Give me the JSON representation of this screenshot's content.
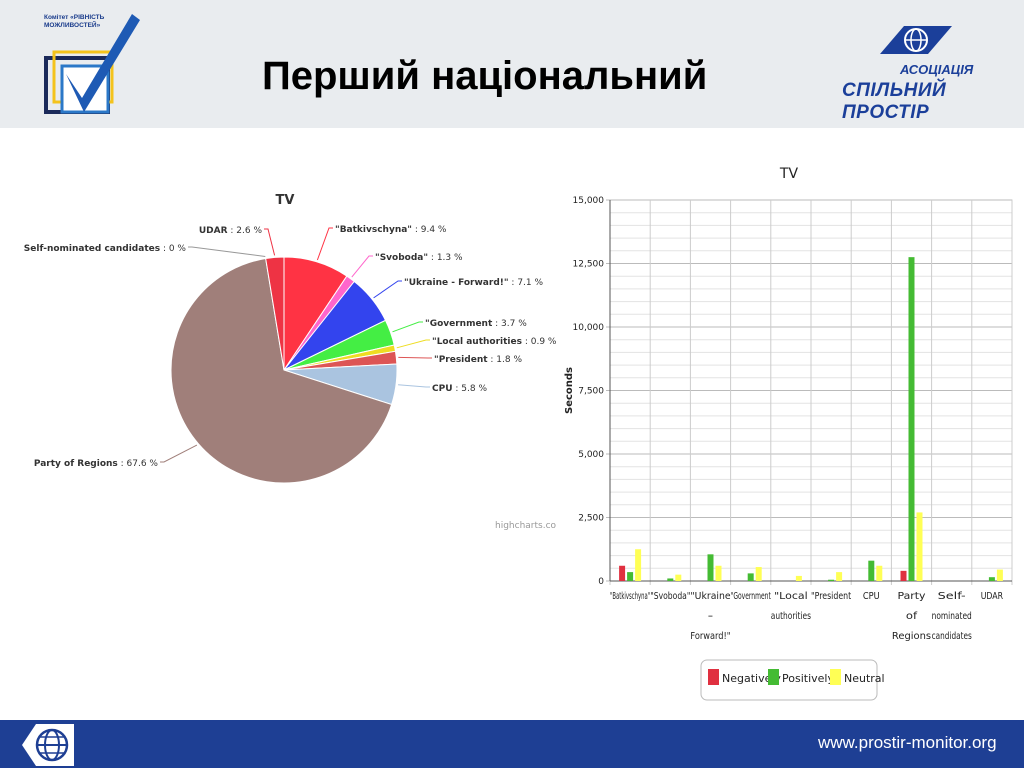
{
  "header": {
    "title": "Перший національний",
    "logo_left_text": "Комітет «РІВНІСТЬ МОЖЛИВОСТЕЙ»",
    "logo_right_line1": "АСОЦІАЦІЯ",
    "logo_right_line2": "СПІЛЬНИЙ ПРОСТІР"
  },
  "footer": {
    "url": "www.prostir-monitor.org"
  },
  "colors": {
    "header_bg": "#e9ecef",
    "footer_bg": "#1e3f94",
    "brand_blue": "#1b3f9a"
  },
  "chart_data": [
    {
      "type": "pie",
      "title": "TV",
      "credit": "highcharts.co",
      "slices": [
        {
          "label": "\"Batkivschyna\"",
          "value": 9.4,
          "color": "#ff3344"
        },
        {
          "label": "\"Svoboda\"",
          "value": 1.3,
          "color": "#ff66cc"
        },
        {
          "label": "\"Ukraine - Forward!\"",
          "value": 7.1,
          "color": "#3344ee"
        },
        {
          "label": "\"Government",
          "value": 3.7,
          "color": "#44ee44"
        },
        {
          "label": "\"Local authorities",
          "value": 0.9,
          "color": "#eedd22"
        },
        {
          "label": "\"President",
          "value": 1.8,
          "color": "#dd5555"
        },
        {
          "label": "CPU",
          "value": 5.8,
          "color": "#aac4e0"
        },
        {
          "label": "Party of Regions",
          "value": 67.6,
          "color": "#a07f7a"
        },
        {
          "label": "Self-nominated candidates",
          "value": 0,
          "color": "#888888"
        },
        {
          "label": "UDAR",
          "value": 2.6,
          "color": "#ee3344"
        }
      ]
    },
    {
      "type": "bar",
      "title": "TV",
      "ylabel": "Seconds",
      "ylim": [
        0,
        15000
      ],
      "yticks": [
        "0",
        "2,500",
        "5,000",
        "7,500",
        "10,000",
        "12,500",
        "15,000"
      ],
      "ytick_values": [
        0,
        2500,
        5000,
        7500,
        10000,
        12500,
        15000
      ],
      "categories": [
        [
          "\"Batkivschyna\""
        ],
        [
          "\"Svoboda\""
        ],
        [
          "\"Ukraine",
          "-",
          "Forward!\""
        ],
        [
          "\"Government"
        ],
        [
          "\"Local",
          "authorities"
        ],
        [
          "\"President"
        ],
        [
          "CPU"
        ],
        [
          "Party",
          "of",
          "Regions"
        ],
        [
          "Self-",
          "nominated",
          "candidates"
        ],
        [
          "UDAR"
        ]
      ],
      "series": [
        {
          "name": "Negatively",
          "color": "#e03040",
          "values": [
            600,
            0,
            0,
            0,
            0,
            0,
            0,
            400,
            0,
            0
          ]
        },
        {
          "name": "Positively",
          "color": "#44bb33",
          "values": [
            350,
            100,
            1050,
            300,
            0,
            50,
            800,
            12750,
            0,
            150
          ]
        },
        {
          "name": "Neutral",
          "color": "#ffff55",
          "values": [
            1250,
            250,
            600,
            550,
            200,
            350,
            600,
            2700,
            0,
            450
          ]
        }
      ]
    }
  ]
}
